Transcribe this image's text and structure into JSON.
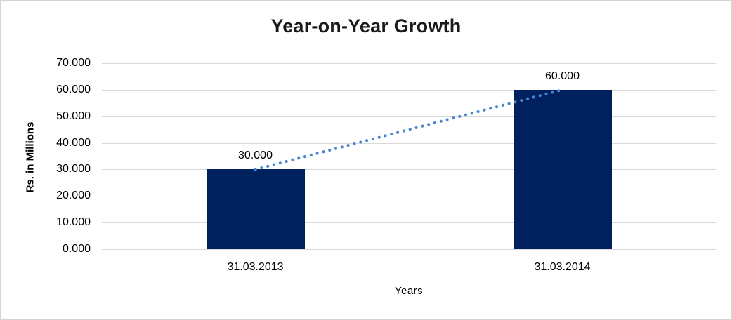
{
  "page": {
    "background_color": "#ffffff",
    "border_color": "#d4d4d4"
  },
  "chart_data": {
    "type": "bar",
    "title": "Year-on-Year Growth",
    "categories": [
      "31.03.2013",
      "31.03.2014"
    ],
    "values": [
      30,
      60
    ],
    "data_labels": [
      "30.000",
      "60.000"
    ],
    "xlabel": "Years",
    "ylabel": "Rs. in Millions",
    "ylim": [
      0,
      70
    ],
    "ytick_values": [
      0,
      10,
      20,
      30,
      40,
      50,
      60,
      70
    ],
    "ytick_labels": [
      "0.000",
      "10.000",
      "20.000",
      "30.000",
      "40.000",
      "50.000",
      "60.000",
      "70.000"
    ],
    "grid": true,
    "legend_position": "none",
    "bar_color": "#01215E",
    "gridline_color": "#d9d9d9",
    "trendline": {
      "type": "linear",
      "style": "dotted",
      "color": "#4A86D0",
      "from_value": 30,
      "to_value": 60
    }
  }
}
